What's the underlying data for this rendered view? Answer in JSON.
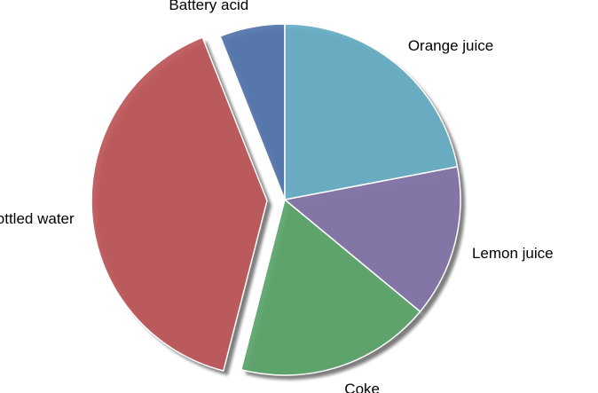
{
  "chart_data": {
    "type": "pie",
    "title": "",
    "shadow": true,
    "start_angle_degrees": 90,
    "direction": "counterclockwise",
    "slices": [
      {
        "label": "Battery acid",
        "value": 6,
        "color": "#5577AE",
        "explode": false
      },
      {
        "label": "Bottled water",
        "value": 40,
        "color": "#BE585B",
        "explode": true
      },
      {
        "label": "Coke",
        "value": 18,
        "color": "#5DA46B",
        "explode": false
      },
      {
        "label": "Lemon juice",
        "value": 14,
        "color": "#8475A9",
        "explode": false
      },
      {
        "label": "Orange juice",
        "value": 22,
        "color": "#68AEC4",
        "explode": false
      }
    ]
  }
}
